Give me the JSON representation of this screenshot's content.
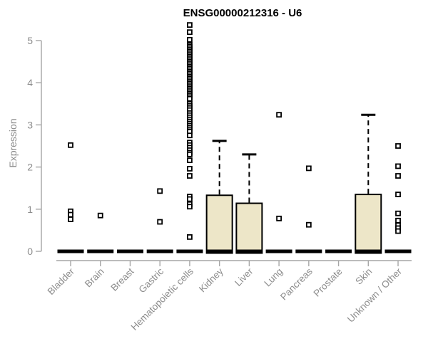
{
  "title": "ENSG00000212316 - U6",
  "y_axis": {
    "label": "Expression",
    "tick_labels": [
      "0",
      "1",
      "2",
      "3",
      "4",
      "5"
    ]
  },
  "colors": {
    "background": "#ffffff",
    "title_text": "#000000",
    "axis_line": "#a6a6a6",
    "axis_tick_label": "#8c8c8c",
    "box_fill": "#ede6c8",
    "box_border": "#000000",
    "median_line": "#000000",
    "whisker": "#000000",
    "outlier_stroke": "#000000",
    "outlier_fill": "#ffffff"
  },
  "chart_data": {
    "type": "boxplot",
    "title": "ENSG00000212316 - U6",
    "xlabel": "",
    "ylabel": "Expression",
    "ylim": [
      0,
      5.45
    ],
    "yticks": [
      0,
      1,
      2,
      3,
      4,
      5
    ],
    "grid": false,
    "legend": "none",
    "categories": [
      "Bladder",
      "Brain",
      "Breast",
      "Gastric",
      "Hematopoietic cells",
      "Kidney",
      "Liver",
      "Lung",
      "Pancreas",
      "Prostate",
      "Skin",
      "Unknown / Other"
    ],
    "series": [
      {
        "label": "Bladder",
        "q1": 0,
        "median": 0,
        "q3": 0,
        "whisker_low": 0,
        "whisker_high": 0,
        "outliers": [
          2.52,
          0.95,
          0.87,
          0.76
        ]
      },
      {
        "label": "Brain",
        "q1": 0,
        "median": 0,
        "q3": 0,
        "whisker_low": 0,
        "whisker_high": 0,
        "outliers": [
          0.85
        ]
      },
      {
        "label": "Breast",
        "q1": 0,
        "median": 0,
        "q3": 0,
        "whisker_low": 0,
        "whisker_high": 0,
        "outliers": []
      },
      {
        "label": "Gastric",
        "q1": 0,
        "median": 0,
        "q3": 0,
        "whisker_low": 0,
        "whisker_high": 0,
        "outliers": [
          1.43,
          0.7
        ]
      },
      {
        "label": "Hematopoietic cells",
        "q1": 0,
        "median": 0,
        "q3": 0,
        "whisker_low": 0,
        "whisker_high": 0,
        "outliers": [
          5.37,
          5.2,
          5.02,
          4.9,
          4.86,
          4.82,
          4.78,
          4.74,
          4.7,
          4.66,
          4.62,
          4.58,
          4.54,
          4.5,
          4.46,
          4.42,
          4.38,
          4.34,
          4.3,
          4.26,
          4.22,
          4.18,
          4.14,
          4.1,
          4.06,
          4.02,
          3.98,
          3.94,
          3.9,
          3.86,
          3.82,
          3.78,
          3.74,
          3.7,
          3.66,
          3.62,
          3.5,
          3.45,
          3.4,
          3.35,
          3.28,
          3.23,
          3.18,
          3.13,
          3.08,
          3.03,
          2.98,
          2.93,
          2.88,
          2.84,
          2.75,
          2.58,
          2.52,
          2.46,
          2.4,
          2.34,
          2.3,
          2.16,
          1.96,
          1.79,
          1.3,
          1.24,
          1.12,
          1.06,
          0.34
        ]
      },
      {
        "label": "Kidney",
        "q1": 0,
        "median": 0,
        "q3": 1.33,
        "whisker_low": 0,
        "whisker_high": 2.62,
        "outliers": []
      },
      {
        "label": "Liver",
        "q1": 0,
        "median": 0,
        "q3": 1.14,
        "whisker_low": 0,
        "whisker_high": 2.3,
        "outliers": []
      },
      {
        "label": "Lung",
        "q1": 0,
        "median": 0,
        "q3": 0,
        "whisker_low": 0,
        "whisker_high": 0,
        "outliers": [
          3.24,
          0.78
        ]
      },
      {
        "label": "Pancreas",
        "q1": 0,
        "median": 0,
        "q3": 0,
        "whisker_low": 0,
        "whisker_high": 0,
        "outliers": [
          1.97,
          0.63
        ]
      },
      {
        "label": "Prostate",
        "q1": 0,
        "median": 0,
        "q3": 0,
        "whisker_low": 0,
        "whisker_high": 0,
        "outliers": []
      },
      {
        "label": "Skin",
        "q1": 0,
        "median": 0,
        "q3": 1.35,
        "whisker_low": 0,
        "whisker_high": 3.24,
        "outliers": []
      },
      {
        "label": "Unknown / Other",
        "q1": 0,
        "median": 0,
        "q3": 0,
        "whisker_low": 0,
        "whisker_high": 0,
        "outliers": [
          2.5,
          2.02,
          1.79,
          1.35,
          0.9,
          0.73,
          0.62,
          0.55,
          0.48
        ]
      }
    ]
  }
}
